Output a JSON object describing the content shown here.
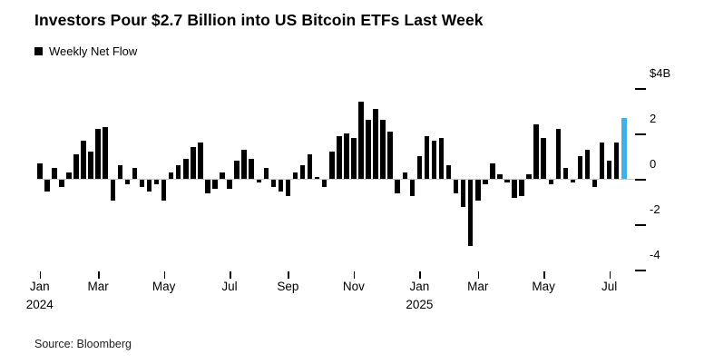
{
  "title": "Investors Pour $2.7 Billion into US Bitcoin ETFs Last Week",
  "legend": {
    "label": "Weekly Net Flow",
    "swatch_color": "#000000"
  },
  "source": "Source: Bloomberg",
  "colors": {
    "bar": "#000000",
    "highlight": "#3fb1e8",
    "axis": "#000000",
    "zero_line": "#c9c9c9"
  },
  "chart_data": {
    "type": "bar",
    "title": "Investors Pour $2.7 Billion into US Bitcoin ETFs Last Week",
    "series_name": "Weekly Net Flow",
    "unit": "$B",
    "ylim": [
      -4,
      4
    ],
    "grid": "none",
    "legend_position": "top-left",
    "y_ticks": [
      {
        "label": "$4B",
        "value": 4
      },
      {
        "label": "2",
        "value": 2
      },
      {
        "label": "0",
        "value": 0
      },
      {
        "label": "-2",
        "value": -2
      },
      {
        "label": "-4",
        "value": -4
      }
    ],
    "x_ticks": [
      {
        "label": "Jan",
        "sub": "2024",
        "index": 0
      },
      {
        "label": "Mar",
        "sub": "",
        "index": 8
      },
      {
        "label": "May",
        "sub": "",
        "index": 17
      },
      {
        "label": "Jul",
        "sub": "",
        "index": 26
      },
      {
        "label": "Sep",
        "sub": "",
        "index": 34
      },
      {
        "label": "Nov",
        "sub": "",
        "index": 43
      },
      {
        "label": "Jan",
        "sub": "2025",
        "index": 52
      },
      {
        "label": "Mar",
        "sub": "",
        "index": 60
      },
      {
        "label": "May",
        "sub": "",
        "index": 69
      },
      {
        "label": "Jul",
        "sub": "",
        "index": 78
      }
    ],
    "values": [
      0.7,
      -0.5,
      0.5,
      -0.3,
      0.3,
      1.1,
      1.7,
      1.2,
      2.2,
      2.3,
      -0.9,
      0.6,
      -0.2,
      0.5,
      -0.3,
      -0.5,
      -0.2,
      -0.9,
      0.3,
      0.6,
      0.9,
      1.4,
      1.6,
      -0.6,
      -0.4,
      0.3,
      -0.4,
      0.8,
      1.3,
      0.9,
      -0.1,
      0.5,
      -0.3,
      -0.5,
      -0.7,
      0.3,
      0.6,
      1.1,
      0.1,
      -0.3,
      1.2,
      1.9,
      2.0,
      1.8,
      3.4,
      2.6,
      3.1,
      2.6,
      2.1,
      -0.6,
      0.3,
      -0.7,
      1.0,
      1.9,
      1.7,
      1.8,
      0.6,
      -0.6,
      -1.2,
      -2.9,
      -0.9,
      -0.2,
      0.7,
      0.2,
      -0.1,
      -0.8,
      -0.7,
      0.2,
      2.4,
      1.8,
      -0.2,
      2.2,
      0.5,
      -0.1,
      1.0,
      1.3,
      -0.3,
      1.6,
      0.8,
      1.6,
      2.7
    ],
    "highlight_index": 80
  }
}
